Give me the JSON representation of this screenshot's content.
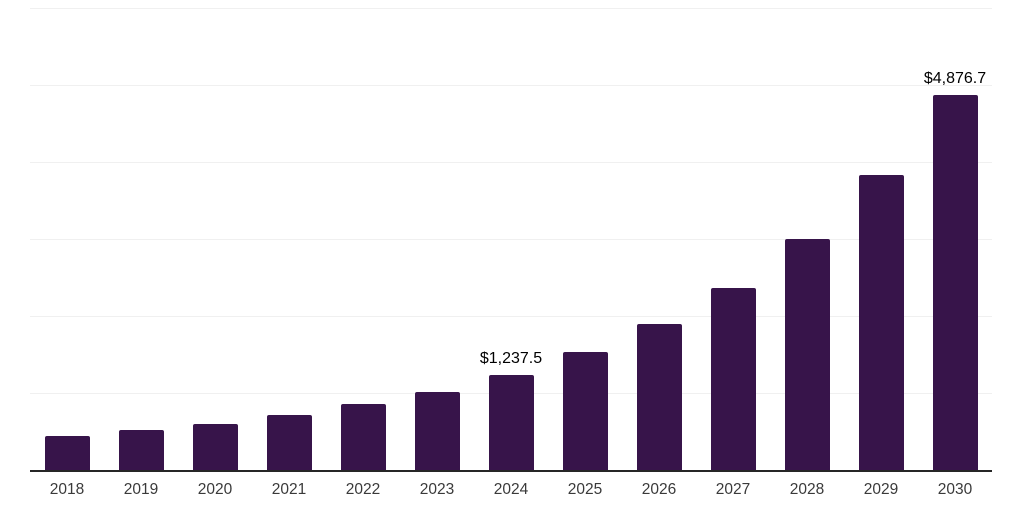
{
  "chart_data": {
    "type": "bar",
    "title": "",
    "xlabel": "",
    "ylabel": "",
    "categories": [
      "2018",
      "2019",
      "2020",
      "2021",
      "2022",
      "2023",
      "2024",
      "2025",
      "2026",
      "2027",
      "2028",
      "2029",
      "2030"
    ],
    "values": [
      437,
      514,
      604,
      720,
      861,
      1015,
      1237.5,
      1535,
      1890,
      2365,
      2995,
      3830,
      4876.7
    ],
    "value_labels": {
      "2024": "$1,237.5",
      "2030": "$4,876.7"
    },
    "ylim": [
      0,
      6000
    ],
    "gridline_step": 1000,
    "gridline_count": 6,
    "grid": true,
    "legend": "none",
    "colors": {
      "bar": "#37144a",
      "axis": "#262626",
      "gridline": "#f0f0f0",
      "tick_label": "#3a3a3a",
      "value_label": "#000000"
    }
  }
}
